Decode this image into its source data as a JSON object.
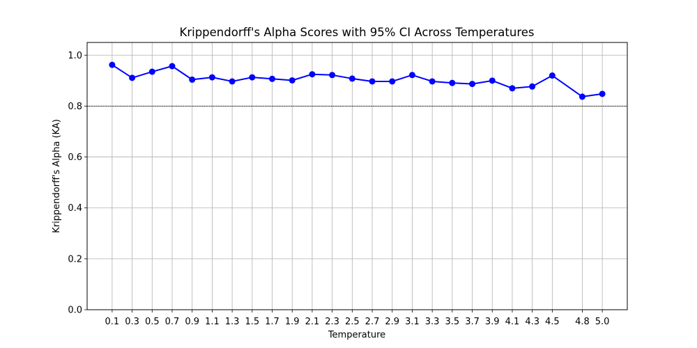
{
  "chart_data": {
    "type": "line",
    "title": "Krippendorff's Alpha Scores with 95% CI Across Temperatures",
    "xlabel": "Temperature",
    "ylabel": "Krippendorff's Alpha (KA)",
    "x": [
      0.1,
      0.3,
      0.5,
      0.7,
      0.9,
      1.1,
      1.3,
      1.5,
      1.7,
      1.9,
      2.1,
      2.3,
      2.5,
      2.7,
      2.9,
      3.1,
      3.3,
      3.5,
      3.7,
      3.9,
      4.1,
      4.3,
      4.5,
      4.8,
      5.0
    ],
    "x_tick_labels": [
      "0.1",
      "0.3",
      "0.5",
      "0.7",
      "0.9",
      "1.1",
      "1.3",
      "1.5",
      "1.7",
      "1.9",
      "2.1",
      "2.3",
      "2.5",
      "2.7",
      "2.9",
      "3.1",
      "3.3",
      "3.5",
      "3.7",
      "3.9",
      "4.1",
      "4.3",
      "4.5",
      "4.8",
      "5.0"
    ],
    "series": [
      {
        "values": [
          0.962,
          0.911,
          0.935,
          0.957,
          0.904,
          0.913,
          0.897,
          0.913,
          0.907,
          0.901,
          0.925,
          0.922,
          0.908,
          0.897,
          0.897,
          0.922,
          0.897,
          0.891,
          0.887,
          0.9,
          0.87,
          0.877,
          0.92,
          0.837,
          0.848
        ],
        "color": "#0000ff",
        "marker": "circle"
      }
    ],
    "reference_line": {
      "y": 0.8,
      "style": "dashed",
      "color": "#000000"
    },
    "xlim": [
      -0.15,
      5.25
    ],
    "ylim": [
      0.0,
      1.05
    ],
    "y_ticks": [
      0.0,
      0.2,
      0.4,
      0.6,
      0.8,
      1.0
    ],
    "y_tick_labels": [
      "0.0",
      "0.2",
      "0.4",
      "0.6",
      "0.8",
      "1.0"
    ],
    "grid": true,
    "legend": "none"
  }
}
